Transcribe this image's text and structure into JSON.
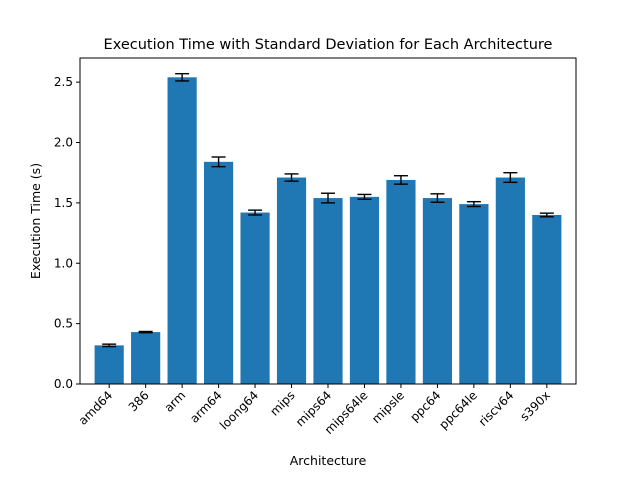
{
  "chart_data": {
    "type": "bar",
    "title": "Execution Time with Standard Deviation for Each Architecture",
    "xlabel": "Architecture",
    "ylabel": "Execution Time (s)",
    "categories": [
      "amd64",
      "386",
      "arm",
      "arm64",
      "loong64",
      "mips",
      "mips64",
      "mips64le",
      "mipsle",
      "ppc64",
      "ppc64le",
      "riscv64",
      "s390x"
    ],
    "values": [
      0.32,
      0.43,
      2.54,
      1.84,
      1.42,
      1.71,
      1.54,
      1.55,
      1.69,
      1.54,
      1.49,
      1.71,
      1.4
    ],
    "errors": [
      0.01,
      0.005,
      0.03,
      0.04,
      0.02,
      0.03,
      0.04,
      0.02,
      0.035,
      0.035,
      0.02,
      0.04,
      0.015
    ],
    "ylim": [
      0,
      2.7
    ],
    "yticks": [
      0.0,
      0.5,
      1.0,
      1.5,
      2.0,
      2.5
    ],
    "ytick_labels": [
      "0.0",
      "0.5",
      "1.0",
      "1.5",
      "2.0",
      "2.5"
    ],
    "bar_color": "#1f77b4",
    "error_color": "#000000",
    "grid": false,
    "legend": "none"
  }
}
